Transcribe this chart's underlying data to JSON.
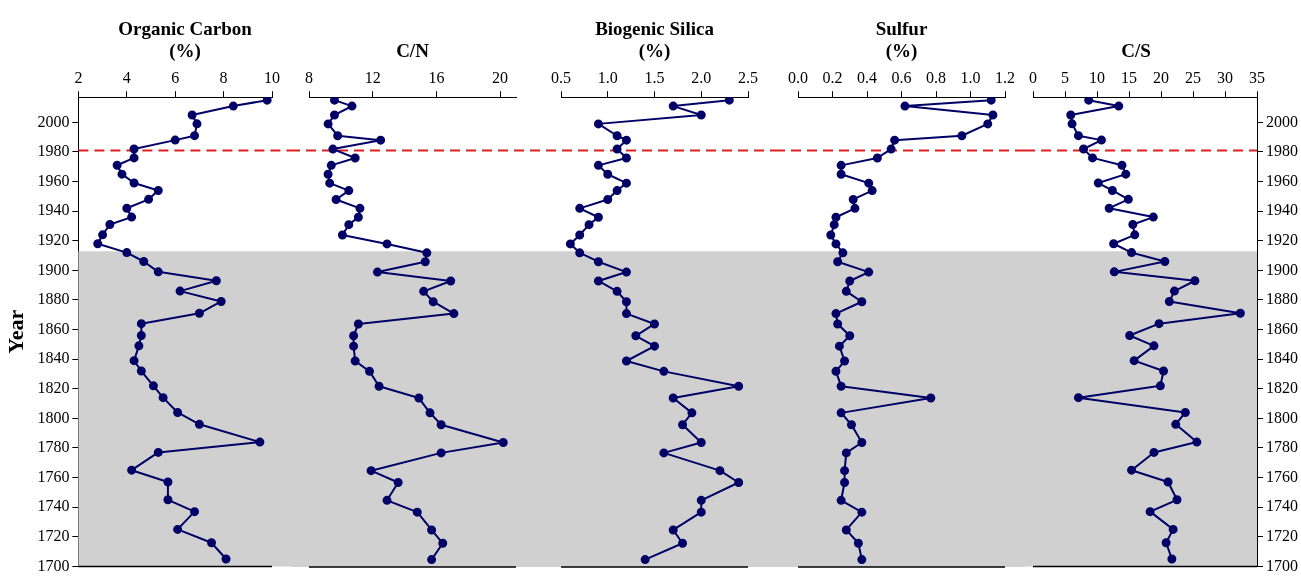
{
  "chart_data": [
    {
      "type": "line",
      "title": "Organic Carbon\n(%)",
      "ylabel": "Year",
      "color": "#000066",
      "marker": "circle",
      "x": [
        9.8,
        8.4,
        6.7,
        6.9,
        6.8,
        6.0,
        4.3,
        4.3,
        3.6,
        3.8,
        4.3,
        5.3,
        4.9,
        4.0,
        4.2,
        3.3,
        3.0,
        2.8,
        4.0,
        4.7,
        5.3,
        7.7,
        6.2,
        7.9,
        7.0,
        4.6,
        4.6,
        4.5,
        4.3,
        4.6,
        5.1,
        5.5,
        6.1,
        7.0,
        9.5,
        5.3,
        4.2,
        5.7,
        5.7,
        6.8,
        6.1,
        7.5,
        8.1
      ],
      "values": [
        2015,
        2011,
        2005,
        1999,
        1991,
        1988,
        1982,
        1976,
        1971,
        1965,
        1959,
        1954,
        1948,
        1942,
        1936,
        1931,
        1924,
        1918,
        1912,
        1906,
        1899,
        1893,
        1886,
        1879,
        1871,
        1864,
        1856,
        1849,
        1839,
        1832,
        1822,
        1814,
        1804,
        1796,
        1784,
        1777,
        1765,
        1757,
        1745,
        1737,
        1725,
        1716,
        1705
      ],
      "xlim": [
        2,
        10
      ],
      "xticks": [
        2,
        4,
        6,
        8,
        10
      ],
      "ylim": [
        1700,
        2017
      ],
      "yticks": [
        1700,
        1720,
        1740,
        1760,
        1780,
        1800,
        1820,
        1840,
        1860,
        1880,
        1900,
        1920,
        1940,
        1960,
        1980,
        2000
      ],
      "bands": [
        {
          "axis": "y",
          "from": 1700,
          "to": 1913,
          "color": "#d0d0d0"
        }
      ],
      "ref_lines": [
        {
          "axis": "y",
          "value": 1981,
          "color": "#e02020",
          "line_style": "dashed"
        }
      ]
    },
    {
      "type": "line",
      "title": "C/N",
      "color": "#000066",
      "marker": "circle",
      "tick_labels": "x",
      "x": [
        9.6,
        10.7,
        9.6,
        9.2,
        9.8,
        12.5,
        9.5,
        10.9,
        9.4,
        9.2,
        9.3,
        10.5,
        9.7,
        11.2,
        11.1,
        10.5,
        10.1,
        12.9,
        15.4,
        15.3,
        12.3,
        16.9,
        15.2,
        15.8,
        17.1,
        11.1,
        10.8,
        10.8,
        10.9,
        11.8,
        12.4,
        14.9,
        15.6,
        16.3,
        20.2,
        16.3,
        11.9,
        13.6,
        12.9,
        14.8,
        15.7,
        16.4,
        15.7
      ],
      "values": [
        2015,
        2011,
        2005,
        1999,
        1991,
        1988,
        1982,
        1976,
        1971,
        1965,
        1959,
        1954,
        1948,
        1942,
        1936,
        1931,
        1924,
        1918,
        1912,
        1906,
        1899,
        1893,
        1886,
        1879,
        1871,
        1864,
        1856,
        1849,
        1839,
        1832,
        1822,
        1814,
        1804,
        1796,
        1784,
        1777,
        1765,
        1757,
        1745,
        1737,
        1725,
        1716,
        1705
      ],
      "xlim": [
        8,
        21
      ],
      "xticks": [
        8,
        12,
        16,
        20
      ],
      "ylim": [
        1700,
        2017
      ],
      "yticks": [
        1700,
        1720,
        1740,
        1760,
        1780,
        1800,
        1820,
        1840,
        1860,
        1880,
        1900,
        1920,
        1940,
        1960,
        1980,
        2000
      ],
      "bands": [
        {
          "axis": "y",
          "from": 1700,
          "to": 1913,
          "color": "#d0d0d0"
        }
      ],
      "ref_lines": [
        {
          "axis": "y",
          "value": 1981,
          "color": "#e02020",
          "line_style": "dashed"
        }
      ]
    },
    {
      "type": "line",
      "title": "Biogenic Silica\n(%)",
      "color": "#000066",
      "marker": "circle",
      "tick_labels": "x",
      "x": [
        2.3,
        1.7,
        2.0,
        0.9,
        1.1,
        1.2,
        1.1,
        1.2,
        0.9,
        1.0,
        1.2,
        1.1,
        1.0,
        0.7,
        0.9,
        0.8,
        0.7,
        0.6,
        0.7,
        0.9,
        1.2,
        0.9,
        1.1,
        1.2,
        1.2,
        1.5,
        1.3,
        1.5,
        1.2,
        1.6,
        2.4,
        1.7,
        1.9,
        1.8,
        2.0,
        1.6,
        2.2,
        2.4,
        2.0,
        2.0,
        1.7,
        1.8,
        1.4
      ],
      "values": [
        2015,
        2011,
        2005,
        1999,
        1991,
        1988,
        1982,
        1976,
        1971,
        1965,
        1959,
        1954,
        1948,
        1942,
        1936,
        1931,
        1924,
        1918,
        1912,
        1906,
        1899,
        1893,
        1886,
        1879,
        1871,
        1864,
        1856,
        1849,
        1839,
        1832,
        1822,
        1814,
        1804,
        1796,
        1784,
        1777,
        1765,
        1757,
        1745,
        1737,
        1725,
        1716,
        1705
      ],
      "xlim": [
        0.5,
        2.5
      ],
      "xticks": [
        {
          "value": 0.5,
          "label": "0.5"
        },
        {
          "value": 1,
          "label": "1.0"
        },
        {
          "value": 1.5,
          "label": "1.5"
        },
        {
          "value": 2,
          "label": "2.0"
        },
        {
          "value": 2.5,
          "label": "2.5"
        }
      ],
      "ylim": [
        1700,
        2017
      ],
      "yticks": [
        1700,
        1720,
        1740,
        1760,
        1780,
        1800,
        1820,
        1840,
        1860,
        1880,
        1900,
        1920,
        1940,
        1960,
        1980,
        2000
      ],
      "bands": [
        {
          "axis": "y",
          "from": 1700,
          "to": 1913,
          "color": "#d0d0d0"
        }
      ],
      "ref_lines": [
        {
          "axis": "y",
          "value": 1981,
          "color": "#e02020",
          "line_style": "dashed"
        }
      ]
    },
    {
      "type": "line",
      "title": "Sulfur\n(%)",
      "color": "#000066",
      "marker": "circle",
      "tick_labels": "x",
      "x": [
        1.12,
        0.62,
        1.13,
        1.1,
        0.95,
        0.56,
        0.54,
        0.46,
        0.25,
        0.25,
        0.41,
        0.43,
        0.32,
        0.33,
        0.22,
        0.21,
        0.19,
        0.22,
        0.26,
        0.23,
        0.41,
        0.3,
        0.28,
        0.37,
        0.22,
        0.23,
        0.3,
        0.24,
        0.27,
        0.22,
        0.25,
        0.77,
        0.25,
        0.31,
        0.37,
        0.28,
        0.27,
        0.27,
        0.25,
        0.37,
        0.28,
        0.35,
        0.37
      ],
      "values": [
        2015,
        2011,
        2005,
        1999,
        1991,
        1988,
        1982,
        1976,
        1971,
        1965,
        1959,
        1954,
        1948,
        1942,
        1936,
        1931,
        1924,
        1918,
        1912,
        1906,
        1899,
        1893,
        1886,
        1879,
        1871,
        1864,
        1856,
        1849,
        1839,
        1832,
        1822,
        1814,
        1804,
        1796,
        1784,
        1777,
        1765,
        1757,
        1745,
        1737,
        1725,
        1716,
        1705
      ],
      "xlim": [
        0,
        1.2
      ],
      "xticks": [
        {
          "value": 0,
          "label": "0.0"
        },
        {
          "value": 0.2,
          "label": "0.2"
        },
        {
          "value": 0.4,
          "label": "0.4"
        },
        {
          "value": 0.6,
          "label": "0.6"
        },
        {
          "value": 0.8,
          "label": "0.8"
        },
        {
          "value": 1,
          "label": "1.0"
        },
        {
          "value": 1.2,
          "label": "1.2"
        }
      ],
      "ylim": [
        1700,
        2017
      ],
      "yticks": [
        1700,
        1720,
        1740,
        1760,
        1780,
        1800,
        1820,
        1840,
        1860,
        1880,
        1900,
        1920,
        1940,
        1960,
        1980,
        2000
      ],
      "bands": [
        {
          "axis": "y",
          "from": 1700,
          "to": 1913,
          "color": "#d0d0d0"
        }
      ],
      "ref_lines": [
        {
          "axis": "y",
          "value": 1981,
          "color": "#e02020",
          "line_style": "dashed"
        }
      ]
    },
    {
      "type": "line",
      "title": "C/S",
      "marker": "circle",
      "series": [
        {
          "color": "#000066",
          "axis": "y2",
          "x": [
            8.7,
            13.4,
            5.9,
            6.1,
            7.1,
            10.7,
            7.9,
            9.3,
            13.9,
            14.5,
            10.2,
            12.4,
            14.9,
            11.9,
            18.8,
            15.6,
            15.9,
            12.6,
            15.4,
            20.6,
            12.7,
            25.3,
            22.1,
            21.3,
            32.4,
            19.7,
            15.1,
            18.9,
            15.8,
            20.4,
            19.9,
            7.1,
            23.8,
            22.3,
            25.6,
            18.9,
            15.4,
            21.1,
            22.5,
            18.3,
            21.9,
            20.8,
            21.7
          ],
          "values": [
            2015,
            2011,
            2005,
            1999,
            1991,
            1988,
            1982,
            1976,
            1971,
            1965,
            1959,
            1954,
            1948,
            1942,
            1936,
            1931,
            1924,
            1918,
            1912,
            1906,
            1899,
            1893,
            1886,
            1879,
            1871,
            1864,
            1856,
            1849,
            1839,
            1832,
            1822,
            1814,
            1804,
            1796,
            1784,
            1777,
            1765,
            1757,
            1745,
            1737,
            1725,
            1716,
            1705
          ]
        }
      ],
      "xlim": [
        0,
        35
      ],
      "xticks": [
        0,
        5,
        10,
        15,
        20,
        25,
        30,
        35
      ],
      "y2lim": [
        1700,
        2017
      ],
      "y2ticks": [
        1700,
        1720,
        1740,
        1760,
        1780,
        1800,
        1820,
        1840,
        1860,
        1880,
        1900,
        1920,
        1940,
        1960,
        1980,
        2000
      ],
      "bands": [
        {
          "axis": "y2",
          "from": 1700,
          "to": 1913,
          "color": "#d0d0d0"
        }
      ],
      "ref_lines": [
        {
          "axis": "y2",
          "value": 1981,
          "color": "#e02020",
          "line_style": "dashed"
        }
      ]
    }
  ]
}
